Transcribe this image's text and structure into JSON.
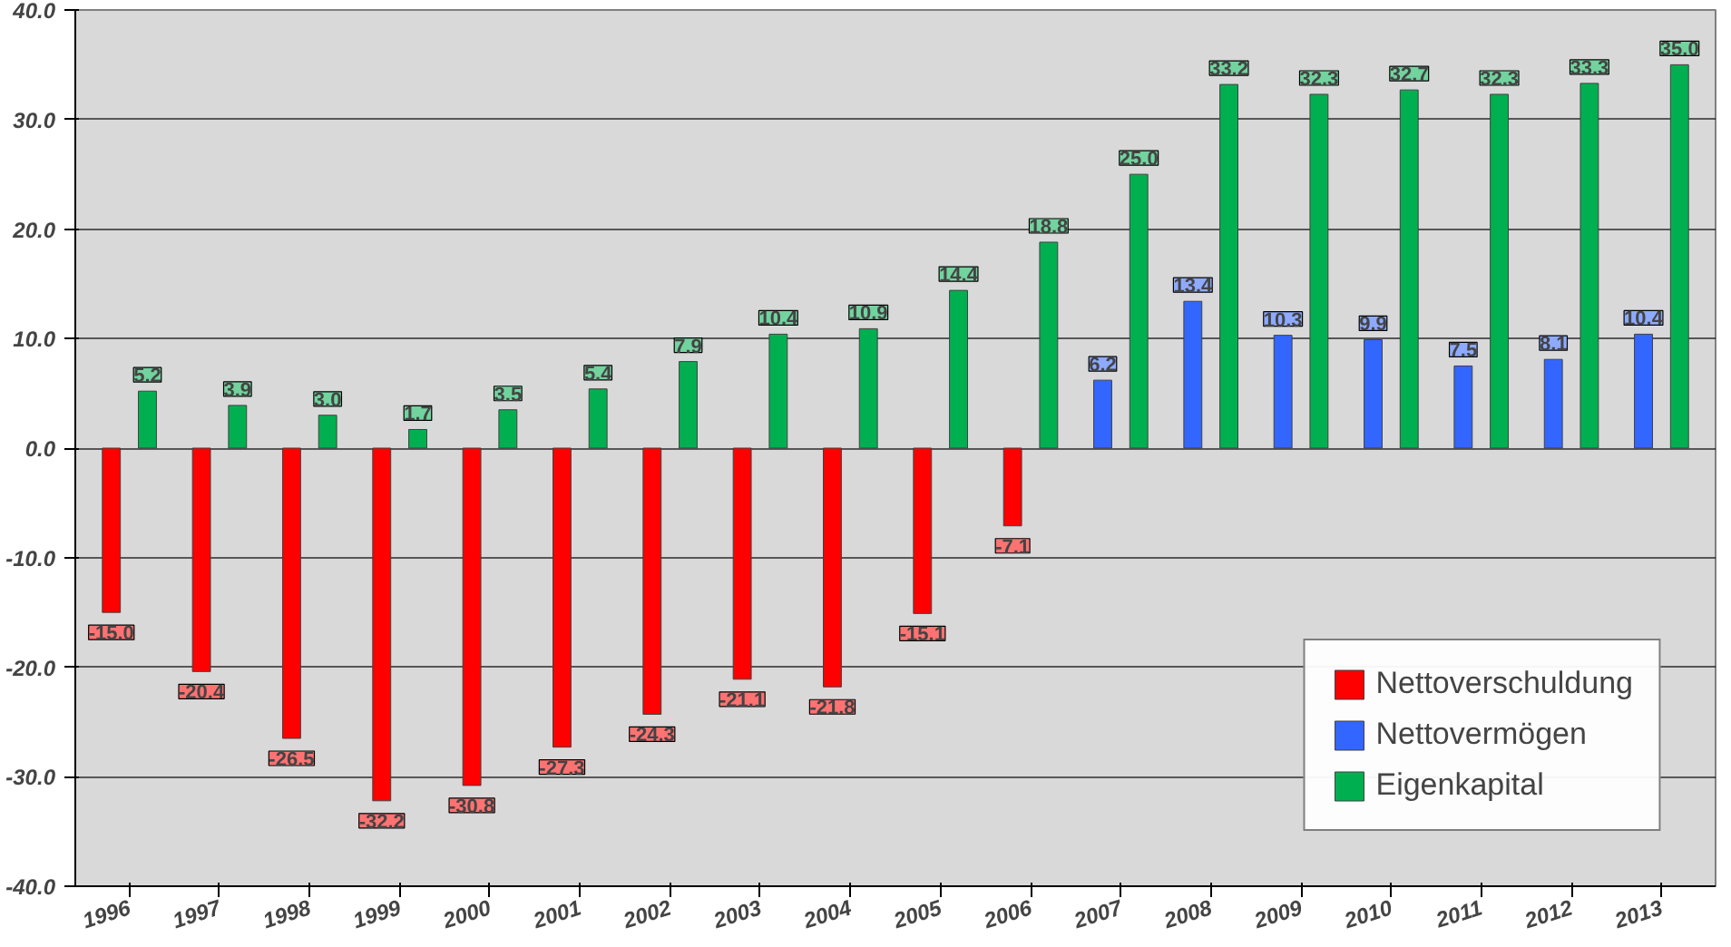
{
  "chart_data": {
    "type": "bar",
    "categories": [
      "1996",
      "1997",
      "1998",
      "1999",
      "2000",
      "2001",
      "2002",
      "2003",
      "2004",
      "2005",
      "2006",
      "2007",
      "2008",
      "2009",
      "2010",
      "2011",
      "2012",
      "2013"
    ],
    "series": [
      {
        "name": "Nettoverschuldung",
        "color": "#ff0000",
        "values": [
          -15.0,
          -20.4,
          -26.5,
          -32.2,
          -30.8,
          -27.3,
          -24.3,
          -21.1,
          -21.8,
          -15.1,
          -7.1,
          null,
          null,
          null,
          null,
          null,
          null,
          null
        ],
        "value_labels": [
          "-15.0",
          "-20.4",
          "-26.5",
          "-32.2",
          "-30.8",
          "-27.3",
          "-24.3",
          "-21.1",
          "-21.8",
          "-15.1",
          "-7.1",
          null,
          null,
          null,
          null,
          null,
          null,
          null
        ]
      },
      {
        "name": "Nettovermögen",
        "color": "#3366ff",
        "values": [
          null,
          null,
          null,
          null,
          null,
          null,
          null,
          null,
          null,
          null,
          null,
          6.2,
          13.4,
          10.3,
          9.9,
          7.5,
          8.1,
          10.4
        ],
        "value_labels": [
          null,
          null,
          null,
          null,
          null,
          null,
          null,
          null,
          null,
          null,
          null,
          "6.2",
          "13.4",
          "10.3",
          "9.9",
          "7.5",
          "8.1",
          "10.4"
        ]
      },
      {
        "name": "Eigenkapital",
        "color": "#00b050",
        "values": [
          5.2,
          3.9,
          3.0,
          1.7,
          3.5,
          5.4,
          7.9,
          10.4,
          10.9,
          14.4,
          18.8,
          25.0,
          33.2,
          32.3,
          32.7,
          32.3,
          33.3,
          35.0
        ],
        "value_labels": [
          "5.2",
          "3.9",
          "3.0",
          "1.7",
          "3.5",
          "5.4",
          "7.9",
          "10.4",
          "10.9",
          "14.4",
          "18.8",
          "25.0",
          "33.2",
          "32.3",
          "32.7",
          "32.3",
          "33.3",
          "35.0"
        ]
      }
    ],
    "ylim": [
      -40,
      40
    ],
    "yticks": [
      {
        "value": -40,
        "label": "-40.0"
      },
      {
        "value": -30,
        "label": "-30.0"
      },
      {
        "value": -20,
        "label": "-20.0"
      },
      {
        "value": -10,
        "label": "-10.0"
      },
      {
        "value": 0,
        "label": "0.0"
      },
      {
        "value": 10,
        "label": "10.0"
      },
      {
        "value": 20,
        "label": "20.0"
      },
      {
        "value": 30,
        "label": "30.0"
      },
      {
        "value": 40,
        "label": "40.0"
      }
    ],
    "grid": "y",
    "legend": "bottom right"
  }
}
